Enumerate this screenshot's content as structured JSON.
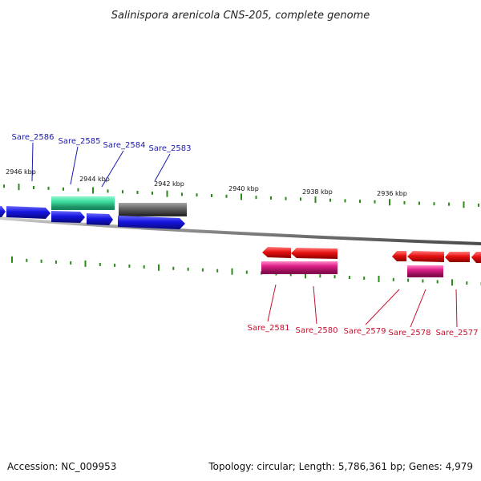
{
  "title": "Salinispora arenicola CNS-205, complete genome",
  "footer": {
    "accession": "Accession: NC_009953",
    "summary": "Topology: circular; Length: 5,786,361 bp; Genes: 4,979"
  },
  "kbp_labels": [
    "2946 kbp",
    "2944 kbp",
    "2942 kbp",
    "2940 kbp",
    "2938 kbp",
    "2936 kbp"
  ],
  "gene_labels_top": [
    "Sare_2586",
    "Sare_2585",
    "Sare_2584",
    "Sare_2583"
  ],
  "gene_labels_bottom": [
    "Sare_2581",
    "Sare_2580",
    "Sare_2579",
    "Sare_2578",
    "Sare_2577"
  ],
  "colors": {
    "forward_gene": "#1515e0",
    "reverse_gene": "#e81010",
    "teal_feature": "#3de0a0",
    "gray_feature": "#6a6a6a",
    "magenta_feature": "#e0208a",
    "backbone": "#8a8a8a",
    "tick": "#2a8a1a",
    "label_blue": "#1a1ab0",
    "label_red": "#c8102e"
  }
}
